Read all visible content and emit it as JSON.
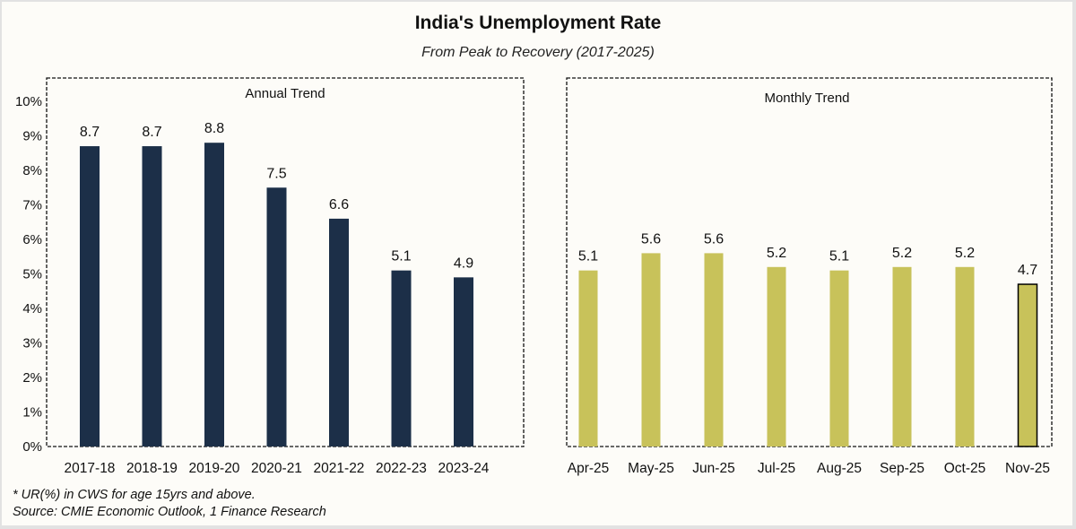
{
  "title": "India's Unemployment Rate",
  "subtitle": "From Peak to Recovery (2017-2025)",
  "footnotes": [
    "* UR(%) in CWS for age 15yrs and above.",
    "Source: CMIE Economic Outlook, 1 Finance Research"
  ],
  "colors": {
    "annual_bar": "#1c2f48",
    "monthly_bar": "#c8c25a",
    "highlight_outline": "#000000",
    "background": "#fdfcf8"
  },
  "chart_data": [
    {
      "type": "bar",
      "title": "Annual Trend",
      "categories": [
        "2017-18",
        "2018-19",
        "2019-20",
        "2020-21",
        "2021-22",
        "2022-23",
        "2023-24"
      ],
      "values": [
        8.7,
        8.7,
        8.8,
        7.5,
        6.6,
        5.1,
        4.9
      ],
      "data_labels": [
        "8.7",
        "8.7",
        "8.8",
        "7.5",
        "6.6",
        "5.1",
        "4.9"
      ],
      "xlabel": "",
      "ylabel": "",
      "ylim": [
        0,
        10
      ],
      "yticks": [
        "0%",
        "1%",
        "2%",
        "3%",
        "4%",
        "5%",
        "6%",
        "7%",
        "8%",
        "9%",
        "10%"
      ],
      "grid": false
    },
    {
      "type": "bar",
      "title": "Monthly Trend",
      "categories": [
        "Apr-25",
        "May-25",
        "Jun-25",
        "Jul-25",
        "Aug-25",
        "Sep-25",
        "Oct-25",
        "Nov-25"
      ],
      "values": [
        5.1,
        5.6,
        5.6,
        5.2,
        5.1,
        5.2,
        5.2,
        4.7
      ],
      "data_labels": [
        "5.1",
        "5.6",
        "5.6",
        "5.2",
        "5.1",
        "5.2",
        "5.2",
        "4.7"
      ],
      "highlighted": "Nov-25",
      "xlabel": "",
      "ylabel": "",
      "ylim": [
        0,
        10
      ],
      "grid": false
    }
  ]
}
